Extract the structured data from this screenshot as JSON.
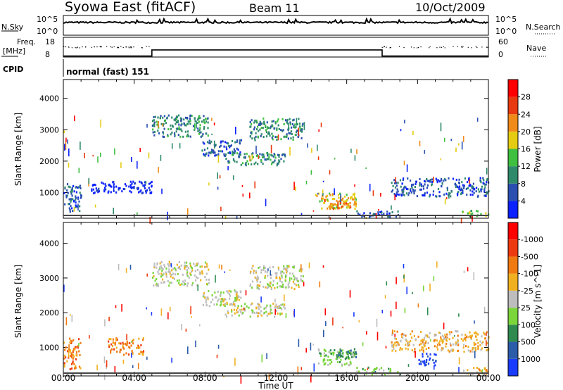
{
  "header": {
    "station": "Syowa East (fitACF)",
    "beam": "Beam 11",
    "date": "10/Oct/2009"
  },
  "noise_panel": {
    "left_label": "N.Sky",
    "right_label": "N.Search",
    "left_ticks": [
      "10^5",
      "10^0"
    ],
    "right_ticks": [
      "10^5",
      "10^0"
    ]
  },
  "freq_panel": {
    "left_label_line1": "Freq.",
    "left_label_line2": "[MHz]",
    "right_label": "Nave",
    "left_ticks": [
      "18",
      "8"
    ],
    "right_ticks": [
      "60",
      "0"
    ],
    "step": {
      "low_mhz": 8.5,
      "high_mhz": 11.6,
      "transitions_hours": [
        5.0,
        18.0
      ]
    }
  },
  "cpid_panel": {
    "label": "CPID",
    "mode": "normal (fast) 151"
  },
  "chart_data": [
    {
      "type": "heatmap",
      "name": "power",
      "ylabel": "Slant Range [km]",
      "xlabel": "",
      "ylim": [
        180,
        4600
      ],
      "yticks": [
        "1000",
        "2000",
        "3000",
        "4000"
      ],
      "xticks": [
        "00:00",
        "04:00",
        "08:00",
        "12:00",
        "16:00",
        "20:00",
        "00:00"
      ],
      "colorbar_label": "Power [dB]",
      "colorbar_ticks": [
        "4",
        "8",
        "12",
        "16",
        "20",
        "24",
        "28"
      ],
      "colorbar_colors": [
        "#0b21ff",
        "#2a4fb0",
        "#2f8a6c",
        "#3fbf3f",
        "#e5cc12",
        "#f08a18",
        "#e83a10",
        "#ff0000"
      ],
      "regions": [
        {
          "t": [
            5.0,
            8.2
          ],
          "r": [
            2800,
            3500
          ],
          "level": 2
        },
        {
          "t": [
            7.8,
            10.0
          ],
          "r": [
            2200,
            2700
          ],
          "level": 1
        },
        {
          "t": [
            9.0,
            12.5
          ],
          "r": [
            1900,
            2300
          ],
          "level": 2
        },
        {
          "t": [
            10.5,
            13.5
          ],
          "r": [
            2700,
            3400
          ],
          "level": 2
        },
        {
          "t": [
            14.2,
            16.5
          ],
          "r": [
            500,
            1000
          ],
          "level": 4
        },
        {
          "t": [
            15.0,
            16.5
          ],
          "r": [
            500,
            800
          ],
          "level": 5
        },
        {
          "t": [
            16.5,
            19.0
          ],
          "r": [
            250,
            450
          ],
          "level": 1
        },
        {
          "t": [
            18.5,
            24.0
          ],
          "r": [
            900,
            1500
          ],
          "level": 1
        },
        {
          "t": [
            22.5,
            24.0
          ],
          "r": [
            250,
            450
          ],
          "level": 3
        },
        {
          "t": [
            0.0,
            1.0
          ],
          "r": [
            400,
            1300
          ],
          "level": 1
        },
        {
          "t": [
            1.5,
            5.0
          ],
          "r": [
            1000,
            1400
          ],
          "level": 0
        }
      ]
    },
    {
      "type": "heatmap",
      "name": "velocity",
      "ylabel": "Slant Range [km]",
      "xlabel": "Time UT",
      "ylim": [
        180,
        4600
      ],
      "yticks": [
        "1000",
        "2000",
        "3000",
        "4000"
      ],
      "xticks": [
        "00:00",
        "04:00",
        "08:00",
        "12:00",
        "16:00",
        "20:00",
        "00:00"
      ],
      "colorbar_label": "Velocity [m s^-1]",
      "colorbar_ticks": [
        "1000",
        "500",
        "100",
        "25",
        "-25",
        "-100",
        "-500",
        "-1000"
      ],
      "colorbar_colors": [
        "#1a3cff",
        "#2a5caa",
        "#2f8a4f",
        "#7ad63a",
        "#bdbdbd",
        "#f0b020",
        "#f07a10",
        "#ee3a10",
        "#ff0000"
      ],
      "regions": [
        {
          "t": [
            5.0,
            8.2
          ],
          "r": [
            2800,
            3500
          ],
          "level": 4
        },
        {
          "t": [
            7.8,
            10.0
          ],
          "r": [
            2200,
            2700
          ],
          "level": 4
        },
        {
          "t": [
            9.0,
            12.5
          ],
          "r": [
            1900,
            2300
          ],
          "level": 4
        },
        {
          "t": [
            10.5,
            13.5
          ],
          "r": [
            2700,
            3400
          ],
          "level": 4
        },
        {
          "t": [
            14.2,
            16.5
          ],
          "r": [
            500,
            1000
          ],
          "level": 3
        },
        {
          "t": [
            15.0,
            16.5
          ],
          "r": [
            700,
            950
          ],
          "level": 2
        },
        {
          "t": [
            16.5,
            19.0
          ],
          "r": [
            250,
            450
          ],
          "level": 3
        },
        {
          "t": [
            18.5,
            24.0
          ],
          "r": [
            900,
            1500
          ],
          "level": 5
        },
        {
          "t": [
            20.0,
            21.0
          ],
          "r": [
            500,
            900
          ],
          "level": 0
        },
        {
          "t": [
            22.5,
            24.0
          ],
          "r": [
            250,
            450
          ],
          "level": 5
        },
        {
          "t": [
            0.0,
            1.0
          ],
          "r": [
            400,
            1300
          ],
          "level": 6
        },
        {
          "t": [
            2.5,
            4.5
          ],
          "r": [
            800,
            1300
          ],
          "level": 6
        }
      ]
    }
  ]
}
